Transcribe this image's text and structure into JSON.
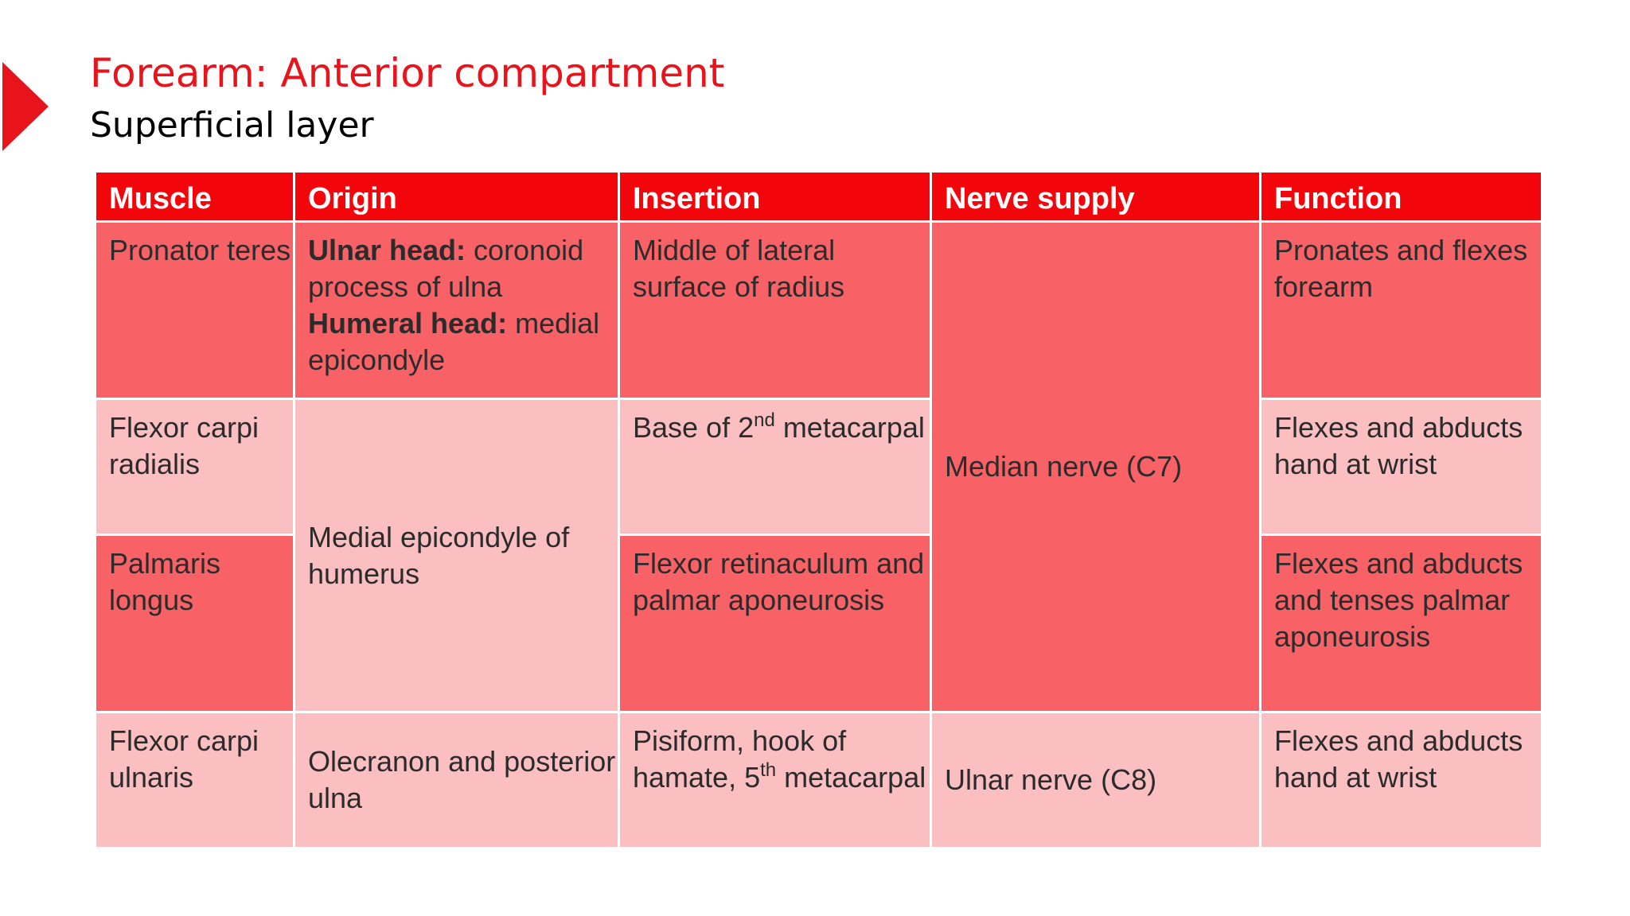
{
  "slide": {
    "title": "Forearm: Anterior compartment",
    "subtitle": "Superficial layer"
  },
  "colors": {
    "accent": "#e8141c",
    "header_bg": "#f2060c",
    "dark_cell": "#f86266",
    "light_cell": "#fbbfc1"
  },
  "table": {
    "headers": {
      "muscle": "Muscle",
      "origin": "Origin",
      "insertion": "Insertion",
      "nerve": "Nerve supply",
      "function": "Function"
    },
    "pronator_teres": {
      "muscle": "Pronator teres",
      "origin_ulnar_label": "Ulnar head:",
      "origin_ulnar_text": " coronoid process of ulna",
      "origin_humeral_label": "Humeral head:",
      "origin_humeral_text": " medial epicondyle",
      "insertion": "Middle of lateral surface of radius",
      "function": "Pronates and flexes forearm"
    },
    "flexor_carpi_radialis": {
      "muscle": "Flexor carpi radialis",
      "insertion_before": "Base of 2",
      "insertion_sup": "nd",
      "insertion_after": " metacarpal",
      "function": "Flexes and abducts hand at wrist"
    },
    "palmaris_longus": {
      "muscle": "Palmaris longus",
      "insertion": "Flexor retinaculum and palmar aponeurosis",
      "function": "Flexes and abducts and tenses palmar aponeurosis"
    },
    "shared": {
      "origin_medial_epicondyle": "Medial epicondyle of humerus",
      "nerve_median": "Median nerve (C7)"
    },
    "flexor_carpi_ulnaris": {
      "muscle": "Flexor carpi ulnaris",
      "origin": "Olecranon and posterior ulna",
      "insertion_before": "Pisiform, hook of hamate, 5",
      "insertion_sup": "th",
      "insertion_after": " metacarpal",
      "nerve": "Ulnar nerve (C8)",
      "function": "Flexes and abducts hand at wrist"
    }
  }
}
